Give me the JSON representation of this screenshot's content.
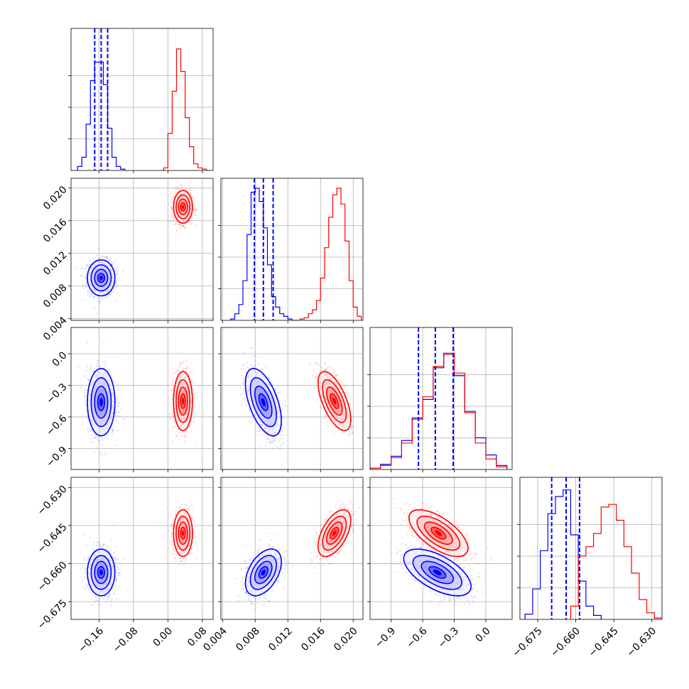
{
  "chart_data": {
    "type": "corner",
    "grid": true,
    "params": [
      {
        "range": [
          -0.225,
          0.105
        ],
        "ticks": [
          -0.16,
          -0.08,
          0.0,
          0.08
        ],
        "tick_labels": [
          "−0.16",
          "−0.08",
          "0.00",
          "0.08"
        ]
      },
      {
        "range": [
          0.0038,
          0.0212
        ],
        "ticks": [
          0.004,
          0.008,
          0.012,
          0.016,
          0.02
        ],
        "tick_labels": [
          "0.004",
          "0.008",
          "0.012",
          "0.016",
          "0.020"
        ]
      },
      {
        "range": [
          -1.1,
          0.25
        ],
        "ticks": [
          -0.9,
          -0.6,
          -0.3,
          0.0
        ],
        "tick_labels": [
          "−0.9",
          "−0.6",
          "−0.3",
          "0.0"
        ]
      },
      {
        "range": [
          -0.682,
          -0.626
        ],
        "ticks": [
          -0.675,
          -0.66,
          -0.645,
          -0.63
        ],
        "tick_labels": [
          "−0.675",
          "−0.660",
          "−0.645",
          "−0.630"
        ]
      }
    ],
    "series": [
      {
        "color": "#0000ff",
        "mean": [
          -0.155,
          0.009,
          -0.46,
          -0.6635
        ],
        "std": [
          0.016,
          0.0011,
          0.16,
          0.0046
        ],
        "corr": [
          [
            0,
            1,
            0.0
          ],
          [
            0,
            2,
            0.0
          ],
          [
            0,
            3,
            0.0
          ],
          [
            1,
            2,
            -0.55
          ],
          [
            1,
            3,
            0.45
          ],
          [
            2,
            3,
            -0.6
          ]
        ],
        "quantiles": [
          [
            -0.17,
            -0.155,
            -0.14
          ],
          [
            0.0079,
            0.009,
            0.0102
          ],
          [
            -0.64,
            -0.48,
            -0.31
          ],
          [
            -0.6695,
            -0.6638,
            -0.6585
          ]
        ],
        "hist_edges": [
          [
            -0.21,
            -0.2,
            -0.19,
            -0.18,
            -0.17,
            -0.16,
            -0.15,
            -0.14,
            -0.13,
            -0.12,
            -0.11,
            -0.1
          ],
          [
            0.005,
            0.0055,
            0.006,
            0.0065,
            0.007,
            0.0075,
            0.008,
            0.0085,
            0.009,
            0.0095,
            0.01,
            0.0105,
            0.011,
            0.0115,
            0.012,
            0.0125,
            0.013
          ],
          [
            -1.1,
            -1.0,
            -0.9,
            -0.8,
            -0.7,
            -0.6,
            -0.5,
            -0.4,
            -0.3,
            -0.2,
            -0.1,
            0.0,
            0.1,
            0.2
          ],
          [
            -0.68,
            -0.677,
            -0.674,
            -0.671,
            -0.668,
            -0.665,
            -0.662,
            -0.659,
            -0.656,
            -0.653,
            -0.65
          ]
        ],
        "hist_counts": [
          [
            0.03,
            0.1,
            0.35,
            0.68,
            0.82,
            0.82,
            0.65,
            0.32,
            0.1,
            0.03,
            0.01
          ],
          [
            0.01,
            0.05,
            0.12,
            0.3,
            0.65,
            0.97,
            1.0,
            0.9,
            0.7,
            0.42,
            0.18,
            0.1,
            0.05,
            0.03,
            0.01,
            0.0
          ],
          [
            0.01,
            0.04,
            0.1,
            0.22,
            0.39,
            0.53,
            0.77,
            0.88,
            0.71,
            0.44,
            0.24,
            0.11,
            0.03
          ],
          [
            0.04,
            0.23,
            0.52,
            0.8,
            0.93,
            0.98,
            0.64,
            0.29,
            0.1,
            0.03
          ]
        ]
      },
      {
        "color": "#ff0000",
        "mean": [
          0.035,
          0.0177,
          -0.45,
          -0.648
        ],
        "std": [
          0.011,
          0.001,
          0.14,
          0.0046
        ],
        "corr": [
          [
            0,
            1,
            0.0
          ],
          [
            0,
            2,
            0.0
          ],
          [
            0,
            3,
            0.0
          ],
          [
            1,
            2,
            -0.62
          ],
          [
            1,
            3,
            0.55
          ],
          [
            2,
            3,
            -0.65
          ]
        ],
        "hist_edges": [
          [
            -0.01,
            0.0,
            0.01,
            0.02,
            0.03,
            0.04,
            0.05,
            0.06,
            0.07,
            0.08,
            0.09
          ],
          [
            0.013,
            0.0135,
            0.014,
            0.0145,
            0.015,
            0.0155,
            0.016,
            0.0165,
            0.017,
            0.0175,
            0.018,
            0.0185,
            0.019,
            0.0195,
            0.02,
            0.0205,
            0.021
          ],
          [
            -1.1,
            -1.0,
            -0.9,
            -0.8,
            -0.7,
            -0.6,
            -0.5,
            -0.4,
            -0.3,
            -0.2,
            -0.1,
            0.0,
            0.1,
            0.2
          ],
          [
            -0.662,
            -0.659,
            -0.656,
            -0.653,
            -0.65,
            -0.647,
            -0.644,
            -0.641,
            -0.638,
            -0.635,
            -0.632,
            -0.629,
            -0.626
          ]
        ],
        "hist_counts": [
          [
            0.02,
            0.28,
            0.6,
            0.92,
            0.75,
            0.4,
            0.18,
            0.05,
            0.02,
            0.01
          ],
          [
            0.0,
            0.01,
            0.02,
            0.05,
            0.08,
            0.15,
            0.32,
            0.55,
            0.78,
            0.95,
            1.0,
            0.88,
            0.6,
            0.3,
            0.1,
            0.03
          ],
          [
            0.01,
            0.03,
            0.09,
            0.2,
            0.38,
            0.55,
            0.78,
            0.87,
            0.73,
            0.43,
            0.2,
            0.08,
            0.02
          ],
          [
            0.1,
            0.48,
            0.55,
            0.65,
            0.85,
            0.87,
            0.75,
            0.55,
            0.35,
            0.15,
            0.05,
            0.01
          ]
        ]
      }
    ]
  }
}
